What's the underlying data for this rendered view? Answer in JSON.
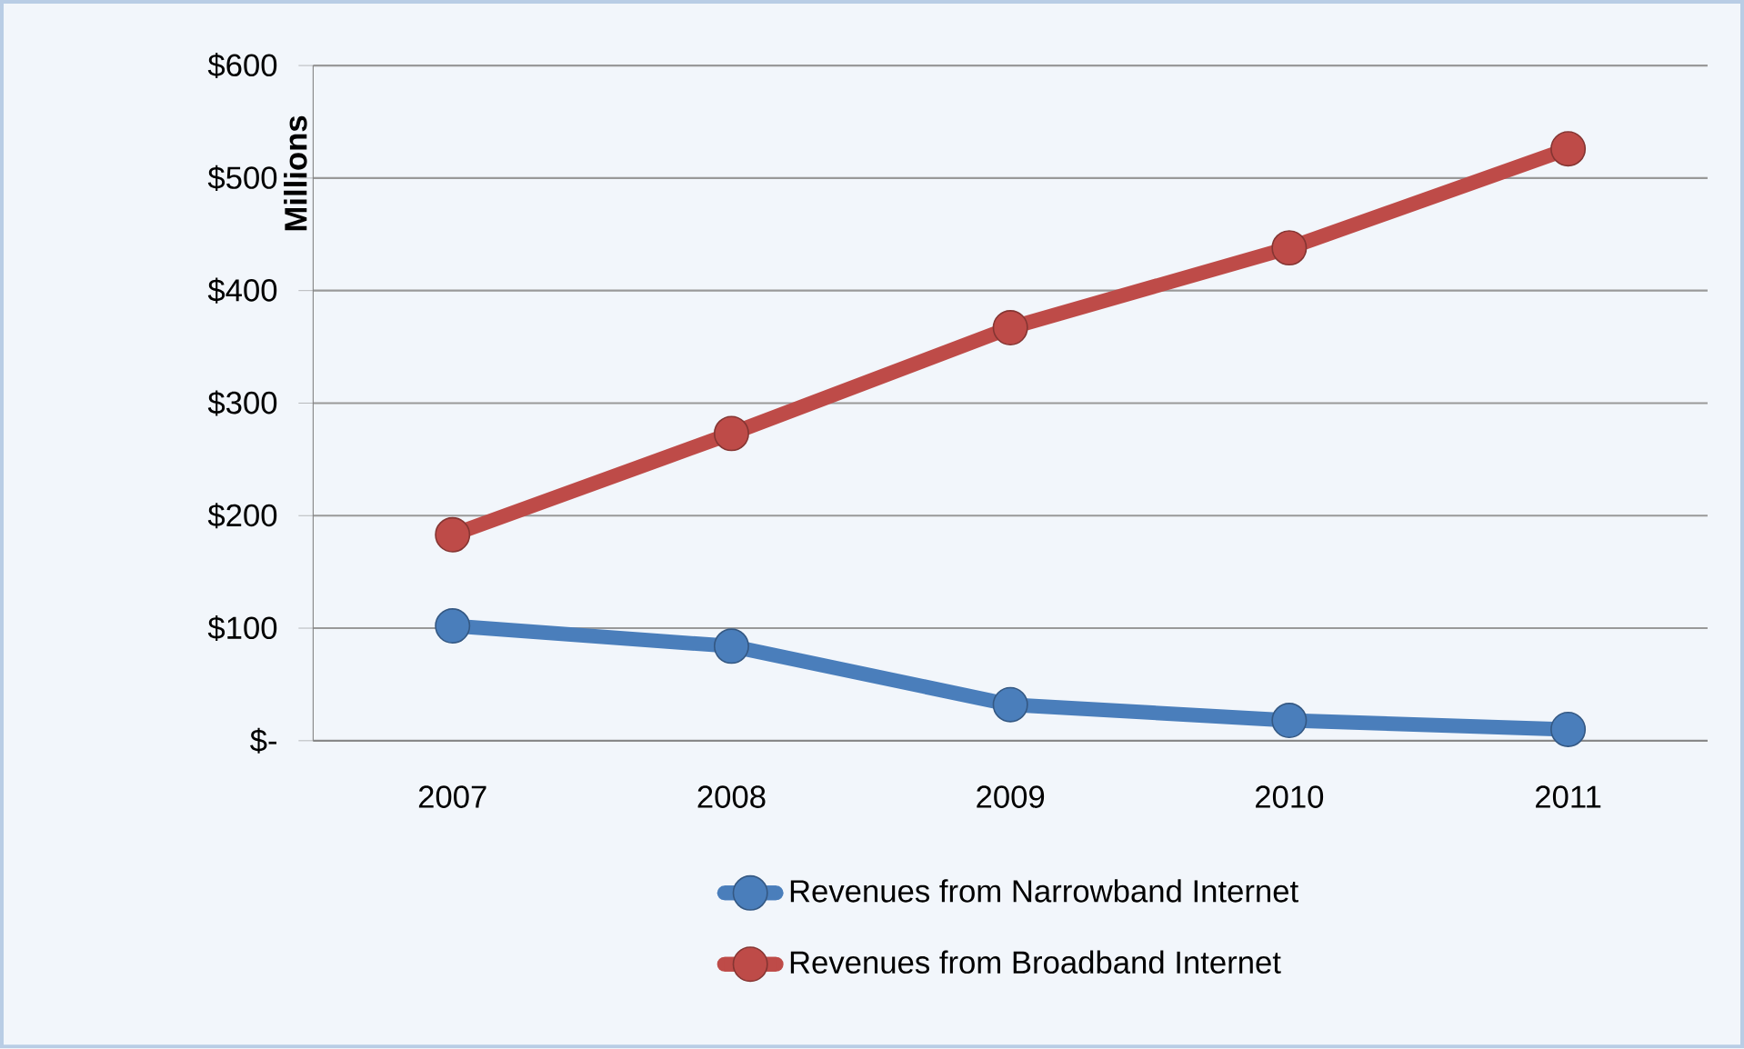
{
  "chart_data": {
    "type": "line",
    "ylabel": "Millions",
    "categories": [
      "2007",
      "2008",
      "2009",
      "2010",
      "2011"
    ],
    "series": [
      {
        "name": "Revenues from Narrowband Internet",
        "color": "#4a7ebb",
        "values": [
          102,
          84,
          32,
          18,
          10
        ]
      },
      {
        "name": "Revenues from Broadband Internet",
        "color": "#be4b48",
        "values": [
          183,
          273,
          367,
          438,
          526
        ]
      }
    ],
    "ylim": [
      0,
      600
    ],
    "yticks": [
      {
        "value": 0,
        "label": "$-"
      },
      {
        "value": 100,
        "label": "$100"
      },
      {
        "value": 200,
        "label": "$200"
      },
      {
        "value": 300,
        "label": "$300"
      },
      {
        "value": 400,
        "label": "$400"
      },
      {
        "value": 500,
        "label": "$500"
      },
      {
        "value": 600,
        "label": "$600"
      }
    ],
    "grid": "y",
    "legend": "bottom",
    "marker": "circle",
    "line_style": "solid"
  }
}
